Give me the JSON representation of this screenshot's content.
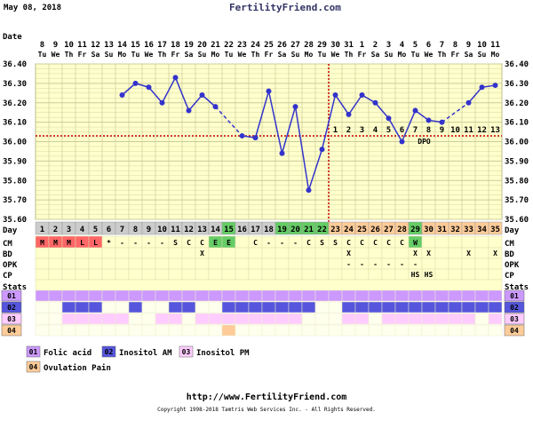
{
  "header": {
    "date": "May 08, 2018",
    "site": "FertilityFriend.com"
  },
  "row_labels": {
    "date": "Date",
    "day": "Day",
    "cm": "CM",
    "bd": "BD",
    "opk": "OPK",
    "cp": "CP",
    "stats": "Stats"
  },
  "colors": {
    "chart_bg": "#ffffcc",
    "grid": "#cccc99",
    "line": "#3333cc",
    "coverline": "#cc0000",
    "ovulation_line": "#cc0000",
    "day_gray": "#cccccc",
    "day_green": "#66cc66",
    "day_orange": "#ffcc99",
    "cm_red": "#ff6666",
    "cm_green": "#66cc66",
    "table_bg": "#ffffcc",
    "stat1": "#cc99ff",
    "stat2": "#5555dd",
    "stat3": "#ffccff",
    "stat4": "#ffcc99"
  },
  "chart_data": {
    "type": "line",
    "title": "",
    "ylabel": "",
    "ylim": [
      35.6,
      36.4
    ],
    "yticks": [
      "35.60",
      "35.70",
      "35.80",
      "35.90",
      "36.00",
      "36.10",
      "36.20",
      "36.30",
      "36.40"
    ],
    "coverline": 36.03,
    "ovulation_day": 22,
    "dates": [
      "8",
      "9",
      "10",
      "11",
      "12",
      "13",
      "14",
      "15",
      "16",
      "17",
      "18",
      "19",
      "20",
      "21",
      "22",
      "23",
      "24",
      "25",
      "26",
      "27",
      "28",
      "29",
      "30",
      "31",
      "1",
      "2",
      "3",
      "4",
      "5",
      "6",
      "7",
      "8",
      "9",
      "10",
      "11"
    ],
    "weekdays": [
      "Tu",
      "We",
      "Th",
      "Fr",
      "Sa",
      "Su",
      "Mo",
      "Tu",
      "We",
      "Th",
      "Fr",
      "Sa",
      "Su",
      "Mo",
      "Tu",
      "We",
      "Th",
      "Fr",
      "Sa",
      "Su",
      "Mo",
      "Tu",
      "We",
      "Th",
      "Fr",
      "Sa",
      "Su",
      "Mo",
      "Tu",
      "We",
      "Th",
      "Fr",
      "Sa",
      "Su",
      "Mo"
    ],
    "days": [
      1,
      2,
      3,
      4,
      5,
      6,
      7,
      8,
      9,
      10,
      11,
      12,
      13,
      14,
      15,
      16,
      17,
      18,
      19,
      20,
      21,
      22,
      23,
      24,
      25,
      26,
      27,
      28,
      29,
      30,
      31,
      32,
      33,
      34,
      35
    ],
    "temps": [
      null,
      null,
      null,
      null,
      null,
      null,
      36.24,
      36.3,
      36.28,
      36.2,
      36.33,
      36.16,
      36.24,
      36.18,
      null,
      36.03,
      36.02,
      36.26,
      35.94,
      36.18,
      35.75,
      35.96,
      36.24,
      36.14,
      36.24,
      36.2,
      36.12,
      36.0,
      36.16,
      36.11,
      36.1,
      null,
      36.2,
      36.28,
      36.29
    ],
    "dashed_segments": [
      [
        14,
        16
      ],
      [
        31,
        33
      ]
    ],
    "dpo_labels": [
      "1",
      "2",
      "3",
      "4",
      "5",
      "6",
      "7",
      "8",
      "9",
      "10",
      "11",
      "12",
      "13"
    ],
    "dpo_start_day": 23,
    "dpo_text": "DPO"
  },
  "day_colors": [
    "gray",
    "gray",
    "gray",
    "gray",
    "gray",
    "gray",
    "gray",
    "gray",
    "gray",
    "gray",
    "gray",
    "gray",
    "gray",
    "gray",
    "green",
    "gray",
    "gray",
    "gray",
    "green",
    "green",
    "green",
    "green",
    "orange",
    "orange",
    "orange",
    "orange",
    "orange",
    "orange",
    "green",
    "orange",
    "orange",
    "orange",
    "orange",
    "orange",
    "orange"
  ],
  "cm_row": [
    "M",
    "M",
    "M",
    "L",
    "L",
    "*",
    "-",
    "-",
    "-",
    "-",
    "S",
    "C",
    "C",
    "E",
    "E",
    "",
    "C",
    "-",
    "-",
    "-",
    "C",
    "S",
    "S",
    "C",
    "C",
    "C",
    "C",
    "C",
    "W",
    "",
    "",
    "",
    "",
    "",
    ""
  ],
  "cm_colors": [
    "red",
    "red",
    "red",
    "red",
    "red",
    "",
    "",
    "",
    "",
    "",
    "",
    "",
    "",
    "green",
    "green",
    "",
    "",
    "",
    "",
    "",
    "",
    "",
    "",
    "",
    "",
    "",
    "",
    "",
    "green",
    "",
    "",
    "",
    "",
    "",
    ""
  ],
  "bd_row": [
    "",
    "",
    "",
    "",
    "",
    "",
    "",
    "",
    "",
    "",
    "",
    "",
    "X",
    "",
    "",
    "",
    "",
    "",
    "",
    "",
    "",
    "",
    "",
    "X",
    "",
    "",
    "",
    "",
    "X",
    "X",
    "",
    "",
    "X",
    "",
    "X"
  ],
  "opk_row": [
    "",
    "",
    "",
    "",
    "",
    "",
    "",
    "",
    "",
    "",
    "",
    "",
    "",
    "",
    "",
    "",
    "",
    "",
    "",
    "",
    "",
    "",
    "",
    "-",
    "-",
    "-",
    "-",
    "-",
    "-",
    "",
    "",
    "",
    "",
    "",
    ""
  ],
  "cp_row": [
    "",
    "",
    "",
    "",
    "",
    "",
    "",
    "",
    "",
    "",
    "",
    "",
    "",
    "",
    "",
    "",
    "",
    "",
    "",
    "",
    "",
    "",
    "",
    "",
    "",
    "",
    "",
    "",
    "HS",
    "HS",
    "",
    "",
    "",
    "",
    ""
  ],
  "stats": {
    "labels": [
      "01",
      "02",
      "03",
      "04"
    ],
    "row1": [
      1,
      1,
      1,
      1,
      1,
      1,
      1,
      1,
      1,
      1,
      1,
      1,
      1,
      1,
      1,
      1,
      1,
      1,
      1,
      1,
      1,
      1,
      1,
      1,
      1,
      1,
      1,
      1,
      1,
      1,
      1,
      1,
      1,
      1,
      1
    ],
    "row2": [
      0,
      0,
      1,
      1,
      1,
      0,
      0,
      1,
      0,
      0,
      1,
      1,
      0,
      0,
      1,
      1,
      1,
      1,
      1,
      1,
      1,
      0,
      0,
      1,
      1,
      1,
      1,
      1,
      1,
      1,
      1,
      1,
      1,
      1,
      1
    ],
    "row3": [
      0,
      0,
      1,
      1,
      1,
      1,
      1,
      0,
      0,
      1,
      1,
      0,
      1,
      1,
      1,
      1,
      1,
      1,
      1,
      1,
      0,
      0,
      0,
      1,
      1,
      0,
      1,
      1,
      1,
      1,
      1,
      1,
      1,
      0,
      1
    ],
    "row4": [
      0,
      0,
      0,
      0,
      0,
      0,
      0,
      0,
      0,
      0,
      0,
      0,
      0,
      0,
      1,
      0,
      0,
      0,
      0,
      0,
      0,
      0,
      0,
      0,
      0,
      0,
      0,
      0,
      0,
      0,
      0,
      0,
      0,
      0,
      0
    ]
  },
  "legend": [
    {
      "id": "01",
      "label": "Folic acid",
      "color": "#cc99ff"
    },
    {
      "id": "02",
      "label": "Inositol AM",
      "color": "#5555dd"
    },
    {
      "id": "03",
      "label": "Inositol PM",
      "color": "#ffccff"
    },
    {
      "id": "04",
      "label": "Ovulation Pain",
      "color": "#ffcc99"
    }
  ],
  "footer": {
    "url": "http://www.FertilityFriend.com",
    "copyright": "Copyright 1998-2018 Tamtris Web Services Inc. - All Rights Reserved."
  }
}
